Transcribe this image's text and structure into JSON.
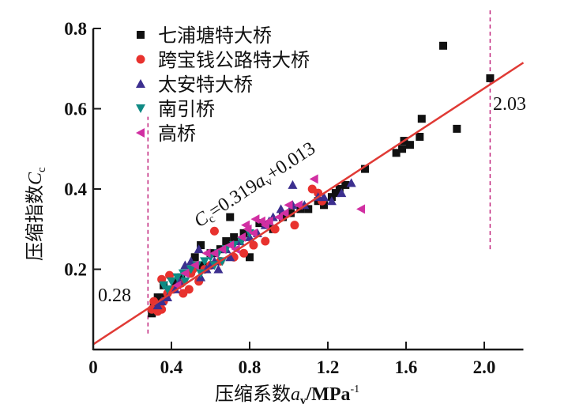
{
  "chart_data": {
    "type": "scatter",
    "title": "",
    "xlabel": "压缩系数a_v/MPa^-1",
    "xlabel_parts": {
      "prefix": "压缩系数",
      "var": "a",
      "sub": "v",
      "suffix": "/MPa",
      "sup": "-1"
    },
    "ylabel": "压缩指数C_c",
    "ylabel_parts": {
      "prefix": "压缩指数",
      "var": "C",
      "sub": "c"
    },
    "xlim": [
      0,
      2.2
    ],
    "ylim": [
      0,
      0.8
    ],
    "xticks": [
      0,
      0.4,
      0.8,
      1.2,
      1.6,
      2.0
    ],
    "xtick_labels": [
      "0",
      "0.4",
      "0.8",
      "1.2",
      "1.6",
      "2.0"
    ],
    "yticks": [
      0.2,
      0.4,
      0.6,
      0.8
    ],
    "ytick_labels": [
      "0.2",
      "0.4",
      "0.6",
      "0.8"
    ],
    "grid": false,
    "legend_position": "top-left",
    "series": [
      {
        "name": "七浦塘特大桥",
        "marker": "square",
        "color": "#111111",
        "points": [
          [
            1.79,
            0.757
          ],
          [
            2.03,
            0.676
          ],
          [
            1.86,
            0.55
          ],
          [
            1.68,
            0.575
          ],
          [
            1.67,
            0.53
          ],
          [
            1.62,
            0.51
          ],
          [
            1.59,
            0.52
          ],
          [
            1.58,
            0.5
          ],
          [
            1.55,
            0.49
          ],
          [
            1.39,
            0.45
          ],
          [
            1.29,
            0.41
          ],
          [
            1.26,
            0.4
          ],
          [
            1.24,
            0.39
          ],
          [
            1.22,
            0.38
          ],
          [
            1.18,
            0.36
          ],
          [
            1.15,
            0.37
          ],
          [
            1.06,
            0.35
          ],
          [
            0.97,
            0.33
          ],
          [
            0.85,
            0.315
          ],
          [
            0.8,
            0.23
          ],
          [
            0.77,
            0.29
          ],
          [
            0.7,
            0.33
          ],
          [
            0.65,
            0.25
          ],
          [
            0.62,
            0.24
          ],
          [
            0.6,
            0.24
          ],
          [
            0.55,
            0.26
          ],
          [
            0.56,
            0.21
          ],
          [
            0.52,
            0.23
          ],
          [
            0.45,
            0.18
          ],
          [
            0.36,
            0.16
          ],
          [
            0.35,
            0.13
          ],
          [
            0.33,
            0.13
          ],
          [
            0.31,
            0.11
          ],
          [
            0.3,
            0.09
          ],
          [
            0.42,
            0.17
          ],
          [
            0.68,
            0.27
          ],
          [
            0.72,
            0.28
          ],
          [
            0.92,
            0.3
          ],
          [
            1.01,
            0.34
          ],
          [
            1.1,
            0.35
          ]
        ]
      },
      {
        "name": "跨宝钱公路特大桥",
        "marker": "circle",
        "color": "#e8322e",
        "points": [
          [
            0.62,
            0.295
          ],
          [
            0.35,
            0.175
          ],
          [
            0.39,
            0.185
          ],
          [
            0.3,
            0.1
          ],
          [
            0.33,
            0.095
          ],
          [
            0.35,
            0.1
          ],
          [
            0.31,
            0.12
          ],
          [
            0.36,
            0.12
          ],
          [
            0.38,
            0.14
          ],
          [
            0.41,
            0.15
          ],
          [
            0.45,
            0.165
          ],
          [
            0.49,
            0.15
          ],
          [
            0.5,
            0.19
          ],
          [
            0.51,
            0.2
          ],
          [
            0.52,
            0.21
          ],
          [
            0.54,
            0.17
          ],
          [
            0.57,
            0.2
          ],
          [
            0.6,
            0.21
          ],
          [
            0.65,
            0.22
          ],
          [
            0.72,
            0.23
          ],
          [
            0.77,
            0.24
          ],
          [
            0.82,
            0.26
          ],
          [
            0.88,
            0.27
          ],
          [
            0.93,
            0.3
          ],
          [
            1.03,
            0.31
          ],
          [
            1.12,
            0.4
          ],
          [
            1.15,
            0.39
          ],
          [
            1.17,
            0.37
          ],
          [
            0.34,
            0.11
          ],
          [
            0.46,
            0.14
          ]
        ]
      },
      {
        "name": "太安特大桥",
        "marker": "triangle-up",
        "color": "#3c2f8f",
        "points": [
          [
            1.32,
            0.415
          ],
          [
            1.27,
            0.39
          ],
          [
            1.22,
            0.37
          ],
          [
            1.18,
            0.38
          ],
          [
            1.02,
            0.41
          ],
          [
            1.02,
            0.36
          ],
          [
            0.96,
            0.35
          ],
          [
            0.92,
            0.33
          ],
          [
            0.88,
            0.31
          ],
          [
            0.75,
            0.27
          ],
          [
            0.68,
            0.25
          ],
          [
            0.62,
            0.22
          ],
          [
            0.58,
            0.2
          ],
          [
            0.54,
            0.25
          ],
          [
            0.5,
            0.22
          ],
          [
            0.47,
            0.21
          ],
          [
            0.44,
            0.17
          ],
          [
            0.42,
            0.15
          ],
          [
            0.38,
            0.13
          ],
          [
            0.35,
            0.12
          ],
          [
            0.33,
            0.11
          ],
          [
            0.55,
            0.18
          ],
          [
            0.64,
            0.2
          ],
          [
            0.8,
            0.28
          ],
          [
            0.84,
            0.29
          ],
          [
            0.9,
            0.32
          ],
          [
            1.08,
            0.36
          ],
          [
            1.15,
            0.38
          ],
          [
            0.6,
            0.21
          ],
          [
            0.7,
            0.23
          ]
        ]
      },
      {
        "name": "南引桥",
        "marker": "triangle-down",
        "color": "#0f8a84",
        "points": [
          [
            0.36,
            0.16
          ],
          [
            0.4,
            0.17
          ],
          [
            0.43,
            0.18
          ],
          [
            0.46,
            0.19
          ],
          [
            0.5,
            0.2
          ],
          [
            0.53,
            0.21
          ],
          [
            0.57,
            0.22
          ],
          [
            0.6,
            0.23
          ],
          [
            0.64,
            0.24
          ],
          [
            0.68,
            0.25
          ],
          [
            0.72,
            0.26
          ],
          [
            0.76,
            0.27
          ],
          [
            0.8,
            0.29
          ],
          [
            0.38,
            0.15
          ],
          [
            0.47,
            0.17
          ],
          [
            0.55,
            0.19
          ],
          [
            0.62,
            0.21
          ],
          [
            0.66,
            0.22
          ]
        ]
      },
      {
        "name": "高桥",
        "marker": "triangle-left",
        "color": "#d12fa2",
        "points": [
          [
            1.37,
            0.35
          ],
          [
            1.13,
            0.425
          ],
          [
            0.83,
            0.325
          ],
          [
            0.79,
            0.3
          ],
          [
            0.76,
            0.28
          ],
          [
            0.82,
            0.29
          ],
          [
            0.86,
            0.32
          ],
          [
            0.9,
            0.32
          ],
          [
            0.95,
            0.33
          ],
          [
            0.98,
            0.34
          ],
          [
            1.05,
            0.36
          ],
          [
            0.7,
            0.26
          ],
          [
            0.62,
            0.24
          ],
          [
            0.58,
            0.24
          ],
          [
            0.52,
            0.21
          ],
          [
            0.47,
            0.19
          ],
          [
            0.43,
            0.16
          ],
          [
            0.78,
            0.31
          ],
          [
            0.88,
            0.31
          ],
          [
            1.0,
            0.36
          ],
          [
            0.66,
            0.25
          ],
          [
            0.73,
            0.25
          ]
        ]
      }
    ],
    "fit_line": {
      "equation_text": {
        "lhs_var": "C",
        "lhs_sub": "c",
        "mid": "=0.319",
        "var": "a",
        "sub": "v",
        "rhs": "+0.013"
      },
      "slope": 0.319,
      "intercept": 0.013,
      "x_range": [
        0,
        2.2
      ],
      "color": "#e03a35"
    },
    "reference_lines": [
      {
        "x": 0.28,
        "label": "0.28",
        "y_range": [
          0.04,
          0.58
        ],
        "color": "#c2287f"
      },
      {
        "x": 2.03,
        "label": "2.03",
        "y_range": [
          0.25,
          0.85
        ],
        "color": "#c2287f"
      }
    ]
  }
}
